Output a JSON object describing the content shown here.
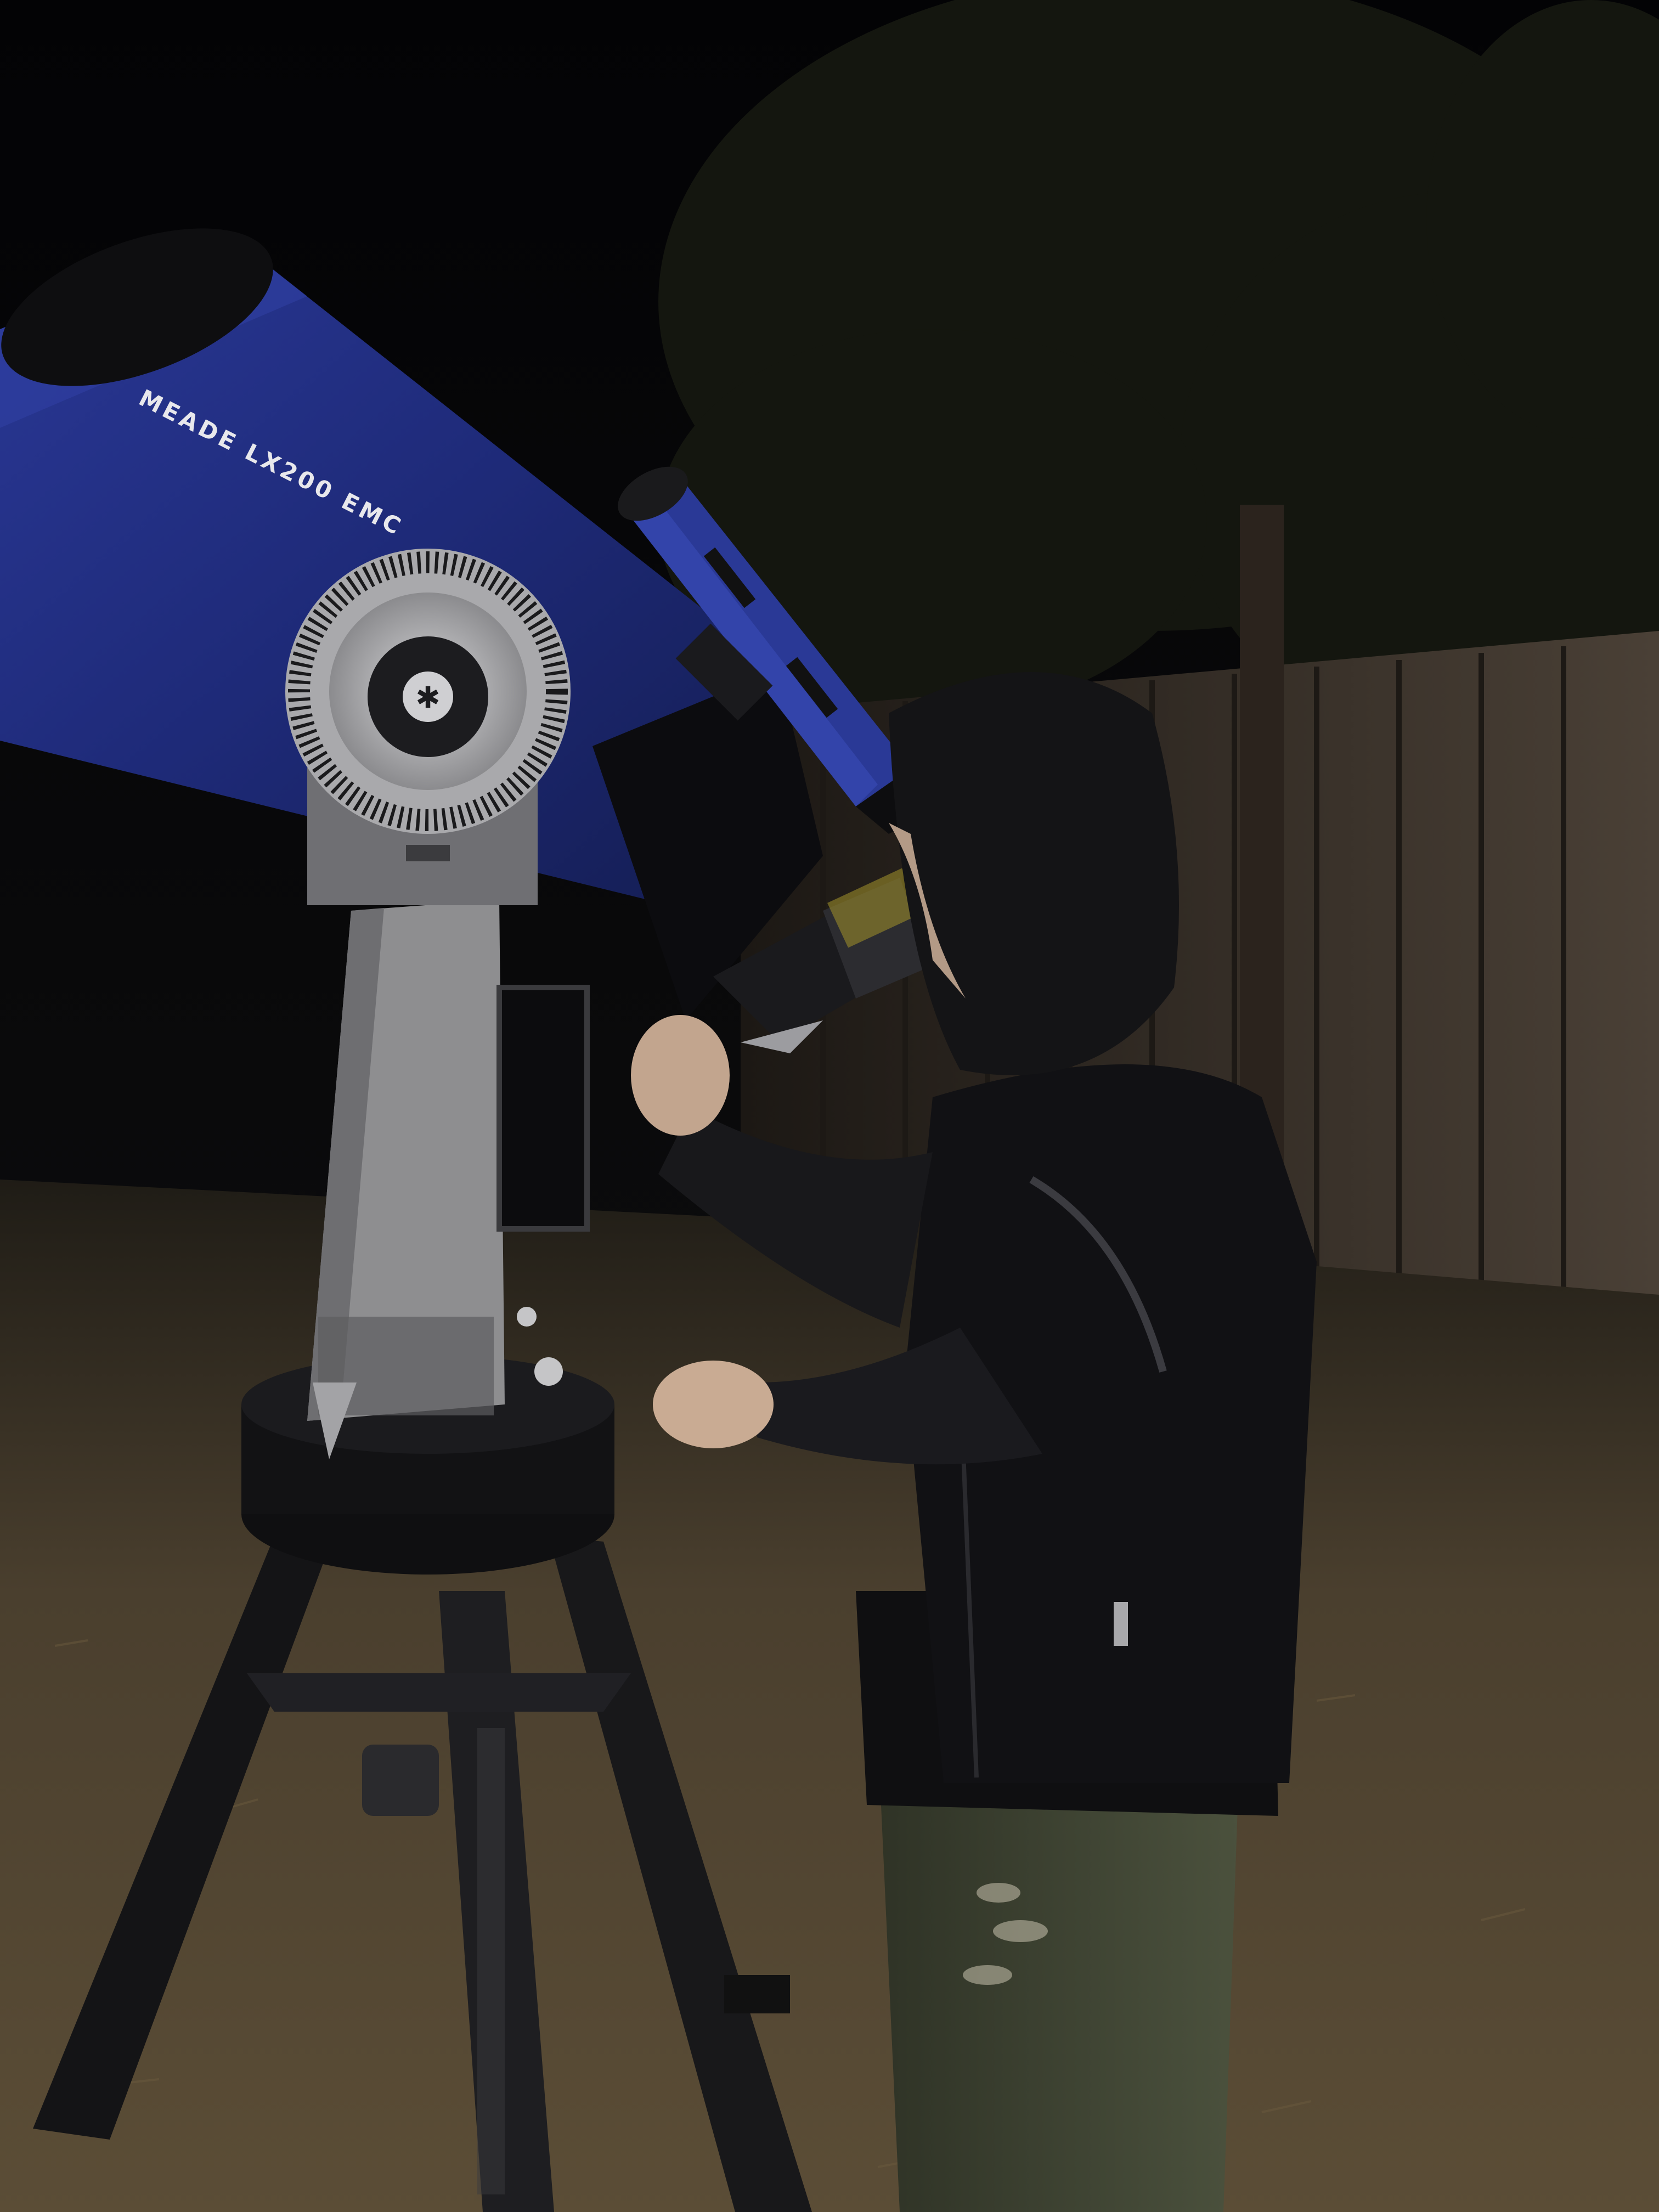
{
  "photo": {
    "subject": "telescope-observing-night",
    "telescope_label": "MEADE LX200 EMC",
    "colors": {
      "sky": "#050507",
      "tube": "#1e2a78",
      "tube_highlight": "#3142a8",
      "fence": "#3a3129",
      "grass": "#4a3f2e",
      "jacket": "#111114",
      "pants": "#3f4433",
      "mount": "#8e8e90"
    }
  }
}
